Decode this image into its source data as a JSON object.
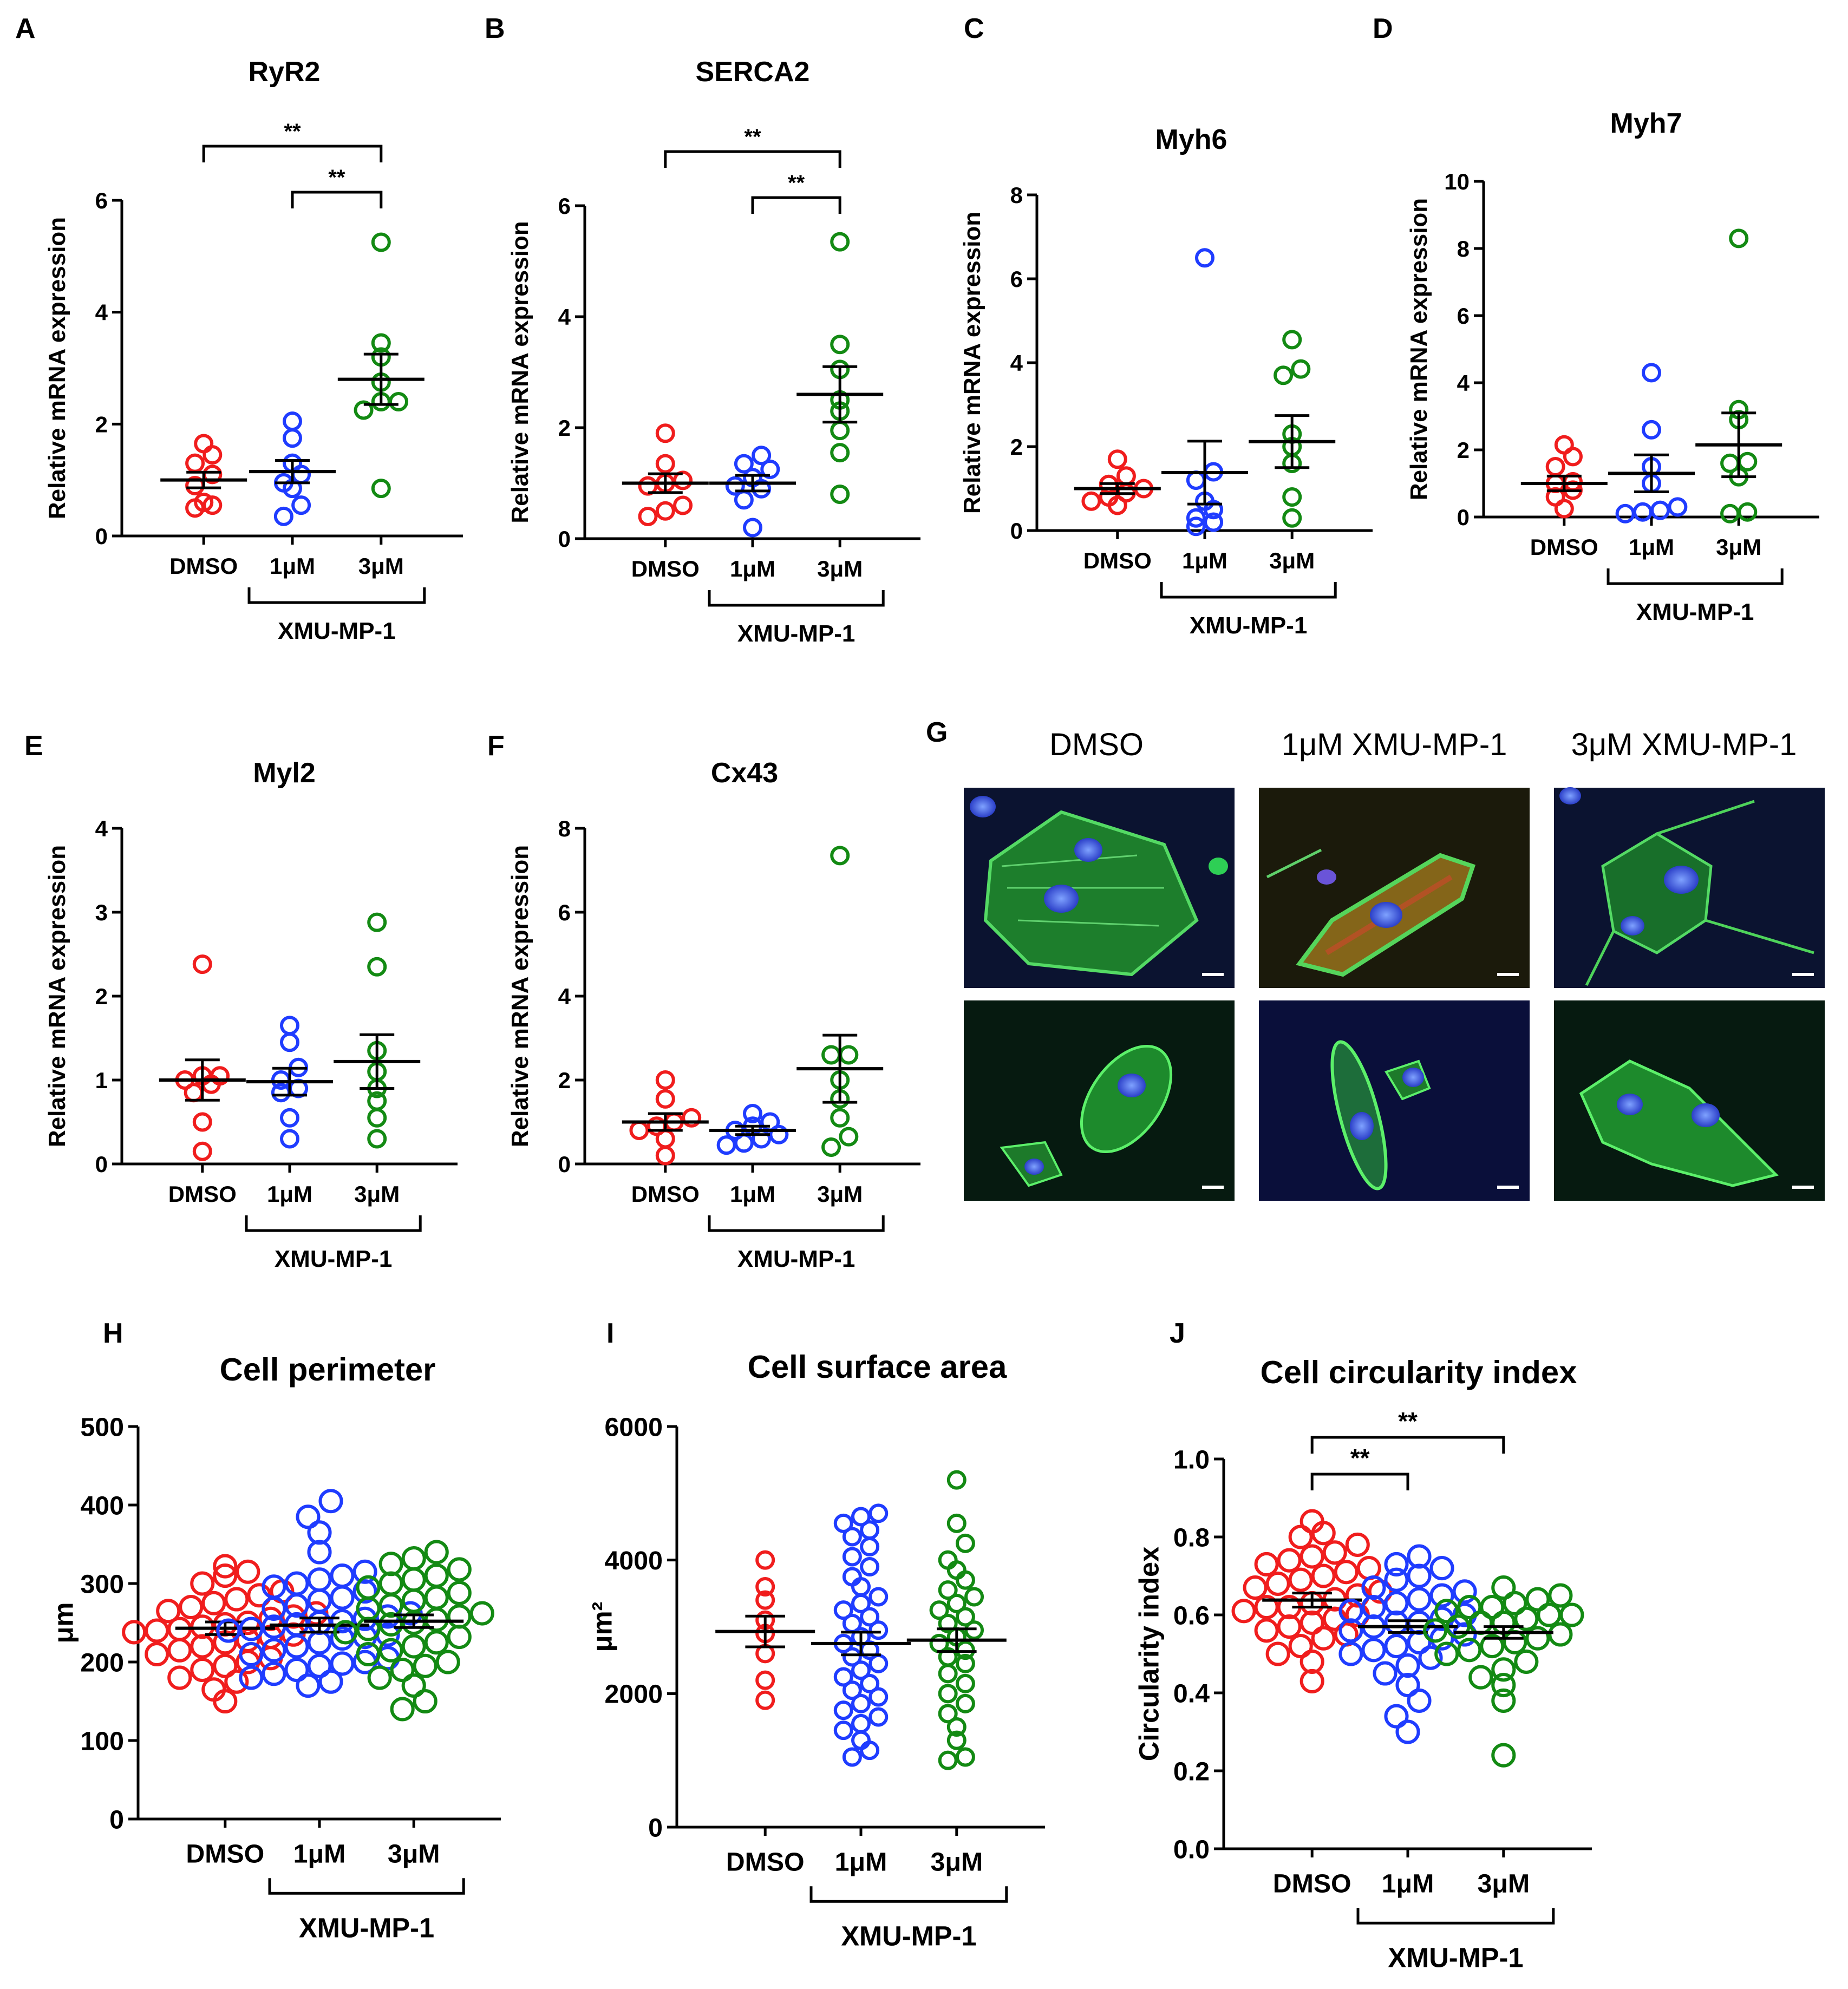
{
  "figure": {
    "image_panel": {
      "letter": "G",
      "column_labels": [
        "DMSO",
        "1μM XMU-MP-1",
        "3μM XMU-MP-1"
      ],
      "description_colors": {
        "green": "#2fbf3a",
        "blue": "#3b57e0",
        "red": "#d03030",
        "background": "#0a0f26"
      }
    }
  },
  "colors": {
    "DMSO": "#f01d1d",
    "1uM": "#1f3cff",
    "3uM": "#138a13",
    "axis": "#000000"
  },
  "chart_data": [
    {
      "letter": "A",
      "type": "scatter",
      "title": "RyR2",
      "ylabel": "Relative mRNA expression",
      "ylim": [
        0,
        6
      ],
      "yticks": [
        0,
        2,
        4,
        6
      ],
      "categories": [
        "DMSO",
        "1μM",
        "3μM"
      ],
      "group_label": "XMU-MP-1",
      "series": [
        {
          "name": "DMSO",
          "values": [
            0.5,
            0.9,
            1.1,
            1.3,
            1.45,
            1.65,
            0.55,
            0.6
          ],
          "mean": 1.0,
          "sem": 0.14
        },
        {
          "name": "1μM",
          "values": [
            0.35,
            0.55,
            0.95,
            1.1,
            1.3,
            1.75,
            2.05,
            0.85
          ],
          "mean": 1.15,
          "sem": 0.2
        },
        {
          "name": "3μM",
          "values": [
            0.85,
            2.25,
            2.4,
            2.75,
            3.2,
            3.45,
            5.25,
            2.4
          ],
          "mean": 2.8,
          "sem": 0.45
        }
      ],
      "significance": [
        {
          "from": 0,
          "to": 2,
          "label": "**"
        },
        {
          "from": 1,
          "to": 2,
          "label": "**"
        }
      ]
    },
    {
      "letter": "B",
      "type": "scatter",
      "title": "SERCA2",
      "ylabel": "Relative mRNA expression",
      "ylim": [
        0,
        6
      ],
      "yticks": [
        0,
        2,
        4,
        6
      ],
      "categories": [
        "DMSO",
        "1μM",
        "3μM"
      ],
      "group_label": "XMU-MP-1",
      "series": [
        {
          "name": "DMSO",
          "values": [
            0.4,
            0.6,
            0.95,
            1.05,
            1.35,
            1.9,
            0.5,
            1.0
          ],
          "mean": 1.0,
          "sem": 0.17
        },
        {
          "name": "1μM",
          "values": [
            0.2,
            0.7,
            0.9,
            1.1,
            1.35,
            1.5,
            1.25,
            0.95
          ],
          "mean": 1.0,
          "sem": 0.14
        },
        {
          "name": "3μM",
          "values": [
            0.8,
            1.55,
            1.95,
            2.3,
            3.05,
            3.5,
            5.35,
            2.5
          ],
          "mean": 2.6,
          "sem": 0.5
        }
      ],
      "significance": [
        {
          "from": 0,
          "to": 2,
          "label": "**"
        },
        {
          "from": 1,
          "to": 2,
          "label": "**"
        }
      ]
    },
    {
      "letter": "C",
      "type": "scatter",
      "title": "Myh6",
      "ylabel": "Relative mRNA expression",
      "ylim": [
        0,
        8
      ],
      "yticks": [
        0,
        2,
        4,
        6,
        8
      ],
      "categories": [
        "DMSO",
        "1μM",
        "3μM"
      ],
      "group_label": "XMU-MP-1",
      "series": [
        {
          "name": "DMSO",
          "values": [
            0.6,
            0.8,
            0.9,
            1.0,
            1.1,
            1.3,
            1.7,
            0.7
          ],
          "mean": 1.0,
          "sem": 0.12
        },
        {
          "name": "1μM",
          "values": [
            0.1,
            0.2,
            0.3,
            0.7,
            1.2,
            1.4,
            6.5,
            0.5
          ],
          "mean": 1.38,
          "sem": 0.75
        },
        {
          "name": "3μM",
          "values": [
            0.3,
            0.8,
            1.6,
            2.0,
            3.7,
            3.85,
            4.55,
            2.3
          ],
          "mean": 2.12,
          "sem": 0.62
        }
      ],
      "significance": []
    },
    {
      "letter": "D",
      "type": "scatter",
      "title": "Myh7",
      "ylabel": "Relative mRNA expression",
      "ylim": [
        0,
        10
      ],
      "yticks": [
        0,
        2,
        4,
        6,
        8,
        10
      ],
      "categories": [
        "DMSO",
        "1μM",
        "3μM"
      ],
      "group_label": "XMU-MP-1",
      "series": [
        {
          "name": "DMSO",
          "values": [
            0.25,
            0.6,
            0.8,
            1.05,
            1.5,
            1.8,
            2.15,
            1.0
          ],
          "mean": 1.0,
          "sem": 0.22
        },
        {
          "name": "1μM",
          "values": [
            0.1,
            0.15,
            0.2,
            0.3,
            1.5,
            2.6,
            4.3,
            1.0
          ],
          "mean": 1.3,
          "sem": 0.55
        },
        {
          "name": "3μM",
          "values": [
            0.1,
            0.15,
            1.2,
            1.65,
            2.9,
            3.2,
            8.3,
            1.6
          ],
          "mean": 2.15,
          "sem": 0.95
        }
      ],
      "significance": []
    },
    {
      "letter": "E",
      "type": "scatter",
      "title": "Myl2",
      "ylabel": "Relative mRNA expression",
      "ylim": [
        0,
        4
      ],
      "yticks": [
        0,
        1,
        2,
        3,
        4
      ],
      "categories": [
        "DMSO",
        "1μM",
        "3μM"
      ],
      "group_label": "XMU-MP-1",
      "series": [
        {
          "name": "DMSO",
          "values": [
            0.15,
            0.5,
            0.85,
            1.0,
            1.05,
            1.05,
            2.38,
            0.95
          ],
          "mean": 1.0,
          "sem": 0.24
        },
        {
          "name": "1μM",
          "values": [
            0.3,
            0.55,
            0.9,
            1.0,
            1.15,
            1.45,
            1.65,
            0.85
          ],
          "mean": 0.98,
          "sem": 0.16
        },
        {
          "name": "3μM",
          "values": [
            0.3,
            0.55,
            0.9,
            1.1,
            1.35,
            2.35,
            2.88,
            0.75
          ],
          "mean": 1.22,
          "sem": 0.32
        }
      ],
      "significance": []
    },
    {
      "letter": "F",
      "type": "scatter",
      "title": "Cx43",
      "ylabel": "Relative mRNA expression",
      "ylim": [
        0,
        8
      ],
      "yticks": [
        0,
        2,
        4,
        6,
        8
      ],
      "categories": [
        "DMSO",
        "1μM",
        "3μM"
      ],
      "group_label": "XMU-MP-1",
      "series": [
        {
          "name": "DMSO",
          "values": [
            0.2,
            0.6,
            0.9,
            1.0,
            1.1,
            1.55,
            2.0,
            0.8
          ],
          "mean": 1.0,
          "sem": 0.2
        },
        {
          "name": "1μM",
          "values": [
            0.5,
            0.6,
            0.7,
            0.8,
            0.9,
            1.0,
            1.2,
            0.45
          ],
          "mean": 0.8,
          "sem": 0.1
        },
        {
          "name": "3μM",
          "values": [
            0.4,
            0.65,
            1.55,
            2.0,
            2.6,
            2.6,
            7.35,
            1.1
          ],
          "mean": 2.27,
          "sem": 0.8
        }
      ],
      "significance": []
    },
    {
      "letter": "H",
      "type": "scatter",
      "title": "Cell perimeter",
      "ylabel": "μm",
      "ylim": [
        0,
        500
      ],
      "yticks": [
        0,
        100,
        200,
        300,
        400,
        500
      ],
      "categories": [
        "DMSO",
        "1μM",
        "3μM"
      ],
      "group_label": "XMU-MP-1",
      "series": [
        {
          "name": "DMSO",
          "values": [
            150,
            165,
            175,
            180,
            190,
            195,
            200,
            205,
            210,
            215,
            220,
            225,
            228,
            232,
            235,
            238,
            240,
            242,
            245,
            248,
            250,
            255,
            258,
            262,
            265,
            270,
            275,
            280,
            285,
            290,
            300,
            310,
            315,
            322
          ],
          "mean": 243,
          "sem": 8
        },
        {
          "name": "1μM",
          "values": [
            170,
            175,
            180,
            185,
            190,
            195,
            198,
            200,
            205,
            210,
            215,
            220,
            225,
            230,
            232,
            235,
            240,
            242,
            245,
            248,
            250,
            252,
            255,
            258,
            262,
            268,
            272,
            278,
            282,
            290,
            296,
            300,
            305,
            310,
            315,
            340,
            365,
            385,
            405
          ],
          "mean": 247,
          "sem": 9
        },
        {
          "name": "3μM",
          "values": [
            140,
            150,
            170,
            180,
            190,
            195,
            200,
            210,
            215,
            220,
            225,
            232,
            238,
            242,
            248,
            250,
            254,
            258,
            262,
            268,
            272,
            278,
            282,
            288,
            295,
            300,
            305,
            310,
            318,
            325,
            332,
            340
          ],
          "mean": 252,
          "sem": 8
        }
      ],
      "significance": []
    },
    {
      "letter": "I",
      "type": "scatter",
      "title": "Cell surface area",
      "ylabel": "μm²",
      "ylim": [
        0,
        6000
      ],
      "yticks": [
        0,
        2000,
        4000,
        6000
      ],
      "categories": [
        "DMSO",
        "1μM",
        "3μM"
      ],
      "group_label": "XMU-MP-1",
      "series": [
        {
          "name": "DMSO",
          "values": [
            1900,
            2200,
            2600,
            2900,
            3100,
            3400,
            3600,
            4000
          ],
          "mean": 2930,
          "sem": 230
        },
        {
          "name": "1μM",
          "values": [
            1050,
            1150,
            1300,
            1450,
            1550,
            1650,
            1750,
            1850,
            1950,
            2050,
            2150,
            2250,
            2350,
            2450,
            2550,
            2650,
            2750,
            2850,
            2950,
            3050,
            3150,
            3250,
            3350,
            3450,
            3600,
            3750,
            3900,
            4050,
            4200,
            4350,
            4450,
            4550,
            4650,
            4700
          ],
          "mean": 2750,
          "sem": 170
        },
        {
          "name": "3μM",
          "values": [
            1000,
            1050,
            1300,
            1500,
            1700,
            1850,
            2000,
            2150,
            2300,
            2450,
            2550,
            2650,
            2750,
            2850,
            2950,
            3050,
            3150,
            3250,
            3350,
            3450,
            3550,
            3700,
            3850,
            4000,
            4250,
            4550,
            5200
          ],
          "mean": 2800,
          "sem": 170
        }
      ],
      "significance": []
    },
    {
      "letter": "J",
      "type": "scatter",
      "title": "Cell circularity index",
      "ylabel": "Circularity index",
      "ylim": [
        0,
        1.0
      ],
      "yticks": [
        0.0,
        0.2,
        0.4,
        0.6,
        0.8,
        1.0
      ],
      "tick_format": 1,
      "categories": [
        "DMSO",
        "1μM",
        "3μM"
      ],
      "group_label": "XMU-MP-1",
      "series": [
        {
          "name": "DMSO",
          "values": [
            0.43,
            0.48,
            0.5,
            0.52,
            0.54,
            0.55,
            0.56,
            0.57,
            0.58,
            0.59,
            0.6,
            0.61,
            0.62,
            0.62,
            0.63,
            0.64,
            0.65,
            0.66,
            0.67,
            0.68,
            0.69,
            0.7,
            0.71,
            0.72,
            0.73,
            0.74,
            0.75,
            0.76,
            0.78,
            0.8,
            0.81,
            0.84
          ],
          "mean": 0.638,
          "sem": 0.018
        },
        {
          "name": "1μM",
          "values": [
            0.3,
            0.34,
            0.38,
            0.42,
            0.45,
            0.47,
            0.49,
            0.5,
            0.51,
            0.52,
            0.53,
            0.54,
            0.55,
            0.56,
            0.57,
            0.58,
            0.58,
            0.59,
            0.6,
            0.61,
            0.62,
            0.63,
            0.64,
            0.65,
            0.66,
            0.67,
            0.69,
            0.7,
            0.72,
            0.73,
            0.75
          ],
          "mean": 0.57,
          "sem": 0.015
        },
        {
          "name": "3μM",
          "values": [
            0.24,
            0.38,
            0.42,
            0.44,
            0.46,
            0.48,
            0.5,
            0.51,
            0.52,
            0.53,
            0.54,
            0.55,
            0.56,
            0.57,
            0.58,
            0.58,
            0.59,
            0.6,
            0.6,
            0.61,
            0.62,
            0.62,
            0.63,
            0.64,
            0.65,
            0.67
          ],
          "mean": 0.555,
          "sem": 0.015
        }
      ],
      "significance": [
        {
          "from": 0,
          "to": 2,
          "label": "**"
        },
        {
          "from": 0,
          "to": 1,
          "label": "**"
        }
      ]
    }
  ]
}
